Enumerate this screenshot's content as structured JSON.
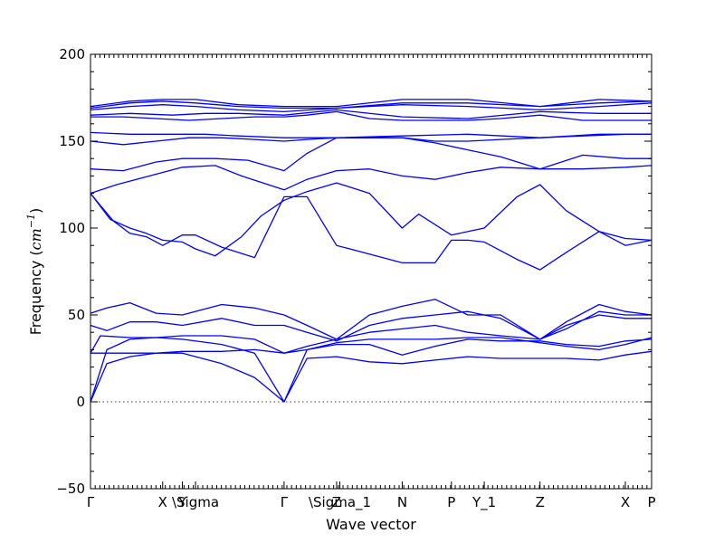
{
  "chart_data": {
    "type": "line",
    "title": "",
    "xlabel": "Wave vector",
    "ylabel": "Frequency",
    "ylabel_unit_base": "cm",
    "ylabel_unit_exp": "−1",
    "ylim": [
      -50,
      200
    ],
    "yticks": [
      -50,
      0,
      50,
      100,
      150,
      200
    ],
    "grid": false,
    "zero_reference_line": true,
    "line_color": "#0000ff",
    "xlim": [
      0,
      1.71
    ],
    "high_symmetry_points": [
      {
        "label": "Γ",
        "x": 0.0
      },
      {
        "label": "X",
        "x": 0.22
      },
      {
        "label": "Y",
        "x": 0.28
      },
      {
        "label": "\\Sigma",
        "x": 0.32
      },
      {
        "label": "Γ",
        "x": 0.59
      },
      {
        "label": "Z",
        "x": 0.75
      },
      {
        "label": "\\Sigma_1",
        "x": 0.76
      },
      {
        "label": "N",
        "x": 0.95
      },
      {
        "label": "P",
        "x": 1.1
      },
      {
        "label": "Y_1",
        "x": 1.2
      },
      {
        "label": "Z",
        "x": 1.37
      },
      {
        "label": "X",
        "x": 1.63
      },
      {
        "label": "P",
        "x": 1.71
      }
    ],
    "series": [
      {
        "x": [
          0,
          0.05,
          0.12,
          0.2,
          0.28,
          0.4,
          0.5,
          0.59,
          0.66,
          0.75,
          0.85,
          0.95,
          1.05,
          1.15,
          1.25,
          1.37,
          1.45,
          1.55,
          1.63,
          1.71
        ],
        "y": [
          0,
          22,
          26,
          28,
          28,
          22,
          14,
          0,
          25,
          26,
          23,
          22,
          24,
          26,
          25,
          25,
          25,
          24,
          27,
          29
        ]
      },
      {
        "x": [
          0,
          0.05,
          0.12,
          0.2,
          0.28,
          0.4,
          0.5,
          0.59,
          0.66,
          0.75,
          0.85,
          0.95,
          1.05,
          1.15,
          1.25,
          1.37,
          1.45,
          1.55,
          1.63,
          1.71
        ],
        "y": [
          0,
          30,
          36,
          37,
          36,
          33,
          28,
          0,
          30,
          33,
          33,
          27,
          32,
          36,
          35,
          35,
          33,
          32,
          35,
          36
        ]
      },
      {
        "x": [
          0,
          0.03,
          0.12,
          0.2,
          0.28,
          0.4,
          0.5,
          0.59,
          0.66,
          0.75,
          0.85,
          0.95,
          1.05,
          1.15,
          1.25,
          1.37,
          1.45,
          1.55,
          1.63,
          1.71
        ],
        "y": [
          28,
          38,
          37,
          37,
          38,
          38,
          36,
          28,
          30,
          34,
          36,
          36,
          36,
          37,
          37,
          34,
          32,
          30,
          33,
          37
        ]
      },
      {
        "x": [
          0,
          0.05,
          0.12,
          0.2,
          0.28,
          0.4,
          0.5,
          0.59,
          0.66,
          0.75,
          0.85,
          0.95,
          1.05,
          1.15,
          1.25,
          1.37,
          1.45,
          1.55,
          1.63,
          1.71
        ],
        "y": [
          28,
          28,
          28,
          28,
          29,
          29,
          30,
          28,
          32,
          36,
          40,
          42,
          44,
          40,
          38,
          36,
          44,
          50,
          48,
          48
        ]
      },
      {
        "x": [
          0,
          0.05,
          0.12,
          0.2,
          0.28,
          0.4,
          0.5,
          0.59,
          0.66,
          0.75,
          0.85,
          0.95,
          1.05,
          1.15,
          1.25,
          1.37,
          1.45,
          1.55,
          1.63,
          1.71
        ],
        "y": [
          44,
          41,
          46,
          46,
          44,
          48,
          44,
          44,
          40,
          35,
          44,
          48,
          50,
          52,
          48,
          36,
          42,
          52,
          50,
          50
        ]
      },
      {
        "x": [
          0,
          0.05,
          0.12,
          0.2,
          0.28,
          0.4,
          0.5,
          0.59,
          0.66,
          0.75,
          0.85,
          0.95,
          1.05,
          1.15,
          1.25,
          1.37,
          1.45,
          1.55,
          1.63,
          1.71
        ],
        "y": [
          51,
          54,
          57,
          51,
          50,
          56,
          54,
          50,
          44,
          36,
          50,
          55,
          59,
          50,
          50,
          36,
          46,
          56,
          52,
          50
        ]
      },
      {
        "x": [
          0,
          0.03,
          0.07,
          0.12,
          0.17,
          0.22,
          0.28,
          0.32,
          0.4,
          0.5,
          0.59,
          0.66,
          0.75,
          0.85,
          0.95,
          1.05,
          1.1,
          1.15,
          1.2,
          1.3,
          1.37,
          1.45,
          1.55,
          1.63,
          1.71
        ],
        "y": [
          120,
          113,
          104,
          97,
          95,
          90,
          96,
          96,
          89,
          83,
          118,
          118,
          90,
          85,
          80,
          80,
          93,
          93,
          92,
          82,
          76,
          86,
          98,
          90,
          93
        ]
      },
      {
        "x": [
          0,
          0.06,
          0.12,
          0.17,
          0.22,
          0.28,
          0.32,
          0.38,
          0.46,
          0.52,
          0.59,
          0.66,
          0.75,
          0.85,
          0.95,
          1.0,
          1.1,
          1.2,
          1.3,
          1.37,
          1.45,
          1.55,
          1.63,
          1.71
        ],
        "y": [
          120,
          105,
          100,
          97,
          93,
          92,
          88,
          84,
          95,
          107,
          116,
          121,
          126,
          120,
          100,
          108,
          96,
          100,
          118,
          125,
          110,
          98,
          94,
          93
        ]
      },
      {
        "x": [
          0,
          0.08,
          0.18,
          0.28,
          0.38,
          0.46,
          0.59,
          0.66,
          0.75,
          0.85,
          0.95,
          1.05,
          1.15,
          1.25,
          1.37,
          1.5,
          1.63,
          1.71
        ],
        "y": [
          120,
          125,
          130,
          135,
          136,
          130,
          122,
          128,
          133,
          134,
          130,
          128,
          132,
          135,
          134,
          134,
          135,
          136
        ]
      },
      {
        "x": [
          0,
          0.1,
          0.2,
          0.28,
          0.38,
          0.48,
          0.59,
          0.66,
          0.75,
          0.85,
          0.95,
          1.05,
          1.15,
          1.25,
          1.37,
          1.5,
          1.63,
          1.71
        ],
        "y": [
          134,
          133,
          138,
          140,
          140,
          139,
          133,
          143,
          152,
          152,
          152,
          149,
          145,
          141,
          134,
          142,
          140,
          140
        ]
      },
      {
        "x": [
          0,
          0.1,
          0.2,
          0.3,
          0.4,
          0.5,
          0.59,
          0.66,
          0.75,
          0.85,
          0.95,
          1.05,
          1.15,
          1.25,
          1.37,
          1.5,
          1.63,
          1.71
        ],
        "y": [
          150,
          148,
          150,
          152,
          152,
          151,
          150,
          151,
          152,
          152,
          152,
          150,
          150,
          151,
          152,
          153,
          154,
          154
        ]
      },
      {
        "x": [
          0,
          0.12,
          0.25,
          0.35,
          0.45,
          0.59,
          0.75,
          0.95,
          1.15,
          1.37,
          1.55,
          1.71
        ],
        "y": [
          155,
          154,
          154,
          154,
          153,
          152,
          152,
          153,
          154,
          152,
          154,
          154
        ]
      },
      {
        "x": [
          0,
          0.1,
          0.2,
          0.3,
          0.4,
          0.5,
          0.59,
          0.66,
          0.75,
          0.85,
          0.95,
          1.05,
          1.15,
          1.25,
          1.37,
          1.5,
          1.63,
          1.71
        ],
        "y": [
          164,
          164,
          163,
          162,
          163,
          164,
          164,
          165,
          167,
          163,
          162,
          162,
          162,
          163,
          165,
          162,
          162,
          162
        ]
      },
      {
        "x": [
          0,
          0.12,
          0.25,
          0.35,
          0.45,
          0.59,
          0.75,
          0.95,
          1.15,
          1.37,
          1.55,
          1.71
        ],
        "y": [
          165,
          166,
          165,
          166,
          166,
          165,
          168,
          164,
          163,
          167,
          166,
          166
        ]
      },
      {
        "x": [
          0,
          0.12,
          0.22,
          0.32,
          0.45,
          0.59,
          0.75,
          0.95,
          1.15,
          1.37,
          1.55,
          1.71
        ],
        "y": [
          168,
          170,
          171,
          170,
          168,
          167,
          169,
          171,
          170,
          168,
          170,
          172
        ]
      },
      {
        "x": [
          0,
          0.12,
          0.22,
          0.32,
          0.45,
          0.59,
          0.75,
          0.95,
          1.15,
          1.37,
          1.55,
          1.71
        ],
        "y": [
          169,
          172,
          173,
          172,
          170,
          169,
          169,
          172,
          172,
          170,
          172,
          173
        ]
      },
      {
        "x": [
          0,
          0.12,
          0.22,
          0.32,
          0.45,
          0.59,
          0.75,
          0.95,
          1.15,
          1.37,
          1.55,
          1.71
        ],
        "y": [
          170,
          173,
          174,
          174,
          171,
          170,
          170,
          174,
          174,
          170,
          174,
          173
        ]
      }
    ]
  }
}
